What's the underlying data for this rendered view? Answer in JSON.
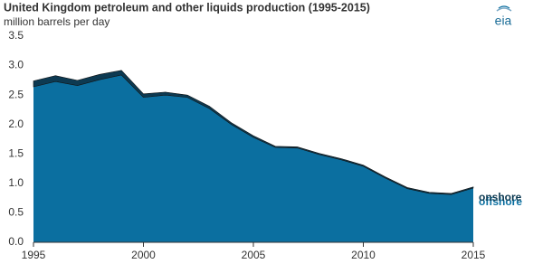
{
  "chart_data": {
    "type": "stacked-area",
    "title": "United Kingdom petroleum and other liquids production (1995-2015)",
    "subtitle": "million barrels per day",
    "logo": "eia",
    "x": [
      1995,
      1996,
      1997,
      1998,
      1999,
      2000,
      2001,
      2002,
      2003,
      2004,
      2005,
      2006,
      2007,
      2008,
      2009,
      2010,
      2011,
      2012,
      2013,
      2014,
      2015
    ],
    "series": [
      {
        "name": "offshore",
        "color": "#0b6fa0",
        "values": [
          2.64,
          2.73,
          2.66,
          2.76,
          2.84,
          2.46,
          2.5,
          2.46,
          2.27,
          2.0,
          1.78,
          1.61,
          1.6,
          1.49,
          1.4,
          1.29,
          1.09,
          0.91,
          0.83,
          0.81,
          0.92
        ]
      },
      {
        "name": "onshore",
        "color": "#0d3a52",
        "values": [
          0.1,
          0.1,
          0.09,
          0.09,
          0.08,
          0.06,
          0.05,
          0.04,
          0.04,
          0.03,
          0.03,
          0.02,
          0.02,
          0.02,
          0.02,
          0.02,
          0.02,
          0.02,
          0.02,
          0.02,
          0.02
        ]
      }
    ],
    "xlim": [
      1995,
      2015
    ],
    "xticks": [
      1995,
      2000,
      2005,
      2010,
      2015
    ],
    "ylim": [
      0,
      3.5
    ],
    "yticks": [
      0.0,
      0.5,
      1.0,
      1.5,
      2.0,
      2.5,
      3.0,
      3.5
    ],
    "grid": false
  }
}
